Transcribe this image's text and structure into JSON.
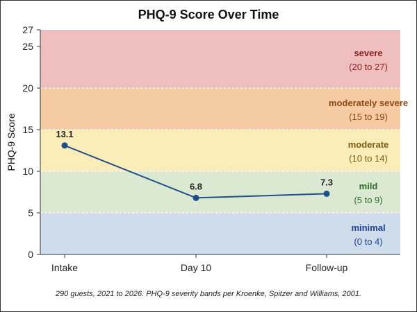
{
  "chart_data": {
    "type": "line",
    "title": "PHQ-9 Score Over Time",
    "xlabel": "",
    "ylabel": "PHQ-9 Score",
    "ylim": [
      0,
      27
    ],
    "yticks": [
      0,
      5,
      10,
      15,
      20,
      25,
      27
    ],
    "categories": [
      "Intake",
      "Day 10",
      "Follow-up"
    ],
    "series": [
      {
        "values": [
          13.1,
          6.8,
          7.3
        ],
        "labels": [
          "13.1",
          "6.8",
          "7.3"
        ],
        "color": "#1f4e8c"
      }
    ],
    "bands": [
      {
        "name": "minimal",
        "range": "(0 to 4)",
        "from": 0,
        "to": 5,
        "fill": "#cfdcec",
        "text_color": "#1f3f8c"
      },
      {
        "name": "mild",
        "range": "(5 to 9)",
        "from": 5,
        "to": 10,
        "fill": "#dbe8d2",
        "text_color": "#2f6b2a"
      },
      {
        "name": "moderate",
        "range": "(10 to 14)",
        "from": 10,
        "to": 15,
        "fill": "#fbedb8",
        "text_color": "#7a5a10"
      },
      {
        "name": "moderately severe",
        "range": "(15 to 19)",
        "from": 15,
        "to": 20,
        "fill": "#f6caa2",
        "text_color": "#8a4a12"
      },
      {
        "name": "severe",
        "range": "(20 to 27)",
        "from": 20,
        "to": 27,
        "fill": "#eebdbd",
        "text_color": "#8c1f1f"
      }
    ],
    "legend": "none",
    "grid": false
  },
  "footnote": "290 guests, 2021 to 2026.  PHQ-9 severity bands per Kroenke, Spitzer and Williams, 2001."
}
